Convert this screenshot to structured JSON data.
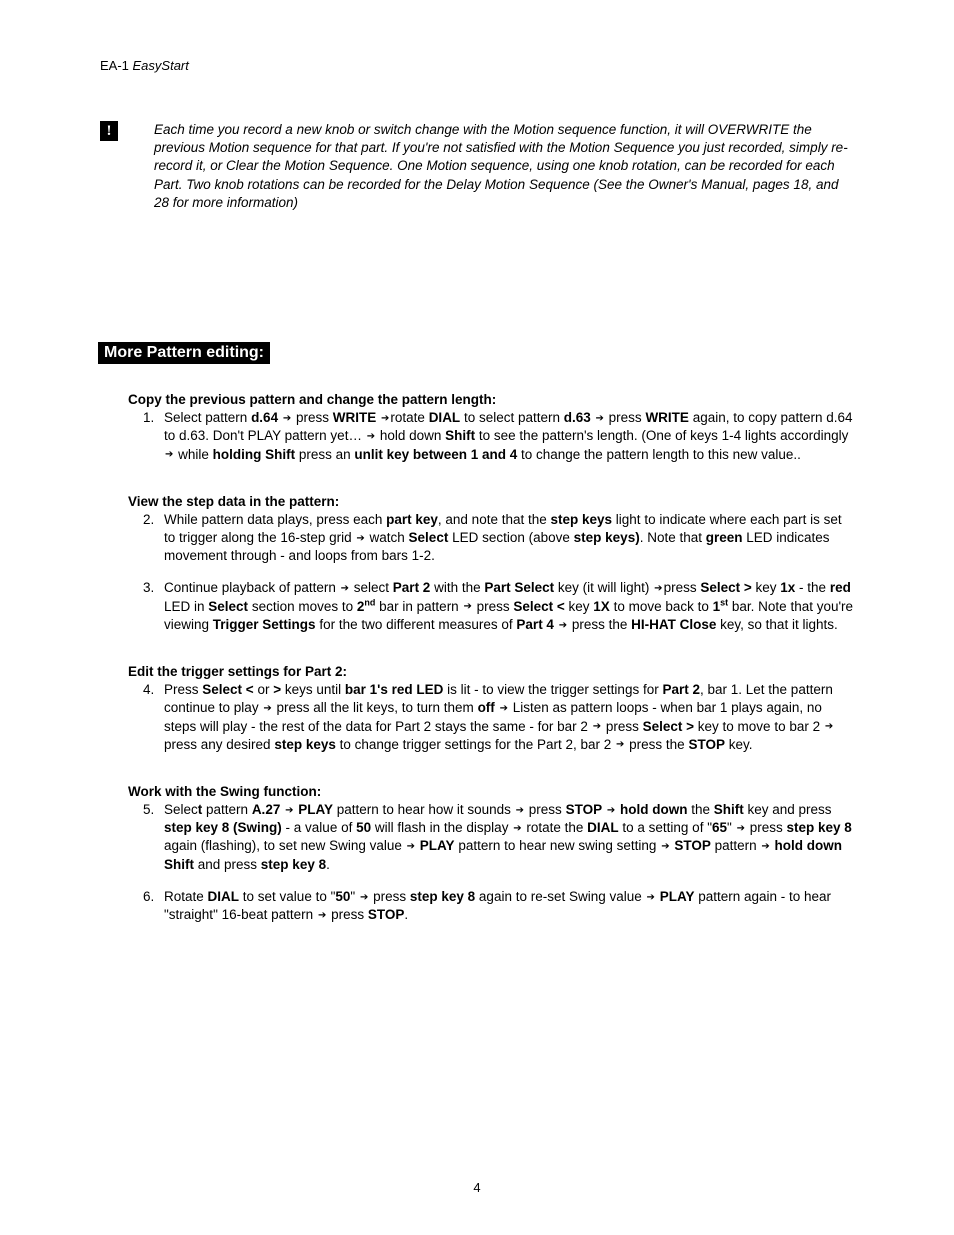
{
  "header_prefix": "EA-1 ",
  "header_italic": "EasyStart",
  "exclaim_char": "!",
  "note_text": "Each time you record a new knob or switch change with the Motion sequence function, it will OVERWRITE the previous Motion sequence for that part. If you're not satisfied with the Motion Sequence you just recorded, simply re-record it, or Clear the Motion Sequence. One Motion sequence, using one knob rotation, can be recorded for each Part. Two knob rotations can be recorded for the Delay Motion Sequence (See the Owner's Manual, pages 18, and 28 for more information)",
  "section_title": " More Pattern editing: ",
  "sub1": "Copy the previous pattern and change the pattern length:",
  "s1": {
    "a1": "Select pattern ",
    "a2": "d.64",
    "a3": " ",
    "a4": " press ",
    "a5": "WRITE",
    "a6": " ",
    "a7": "rotate ",
    "a8": "DIAL",
    "a9": " to select pattern ",
    "a10": "d.63",
    "a11": " ",
    "a12": " press ",
    "a13": "WRITE",
    "a14": " again, to copy pattern d.64 to d.63. Don't PLAY pattern yet… ",
    "a15": " hold down ",
    "a16": "Shift",
    "a17": " to see the pattern's length. (One of keys 1-4 lights accordingly ",
    "a18": " while ",
    "a19": "holding Shift",
    "a20": " press an ",
    "a21": "unlit key between 1 and 4",
    "a22": " to change the pattern length to this new value.."
  },
  "sub2": "View the step data in the pattern:",
  "s2": {
    "a1": "While pattern data plays, press each ",
    "a2": "part key",
    "a3": ", and note that the ",
    "a4": "step keys",
    "a5": " light to indicate where each part is set to trigger along the 16-step grid ",
    "a6": " watch ",
    "a7": "Select",
    "a8": " LED section (above ",
    "a9": "step keys)",
    "a10": ". Note that ",
    "a11": "green",
    "a12": " LED indicates movement through - and loops from bars 1-2."
  },
  "s3": {
    "a1": "Continue playback of pattern ",
    "a2": " select ",
    "a3": "Part 2",
    "a4": " with the ",
    "a5": "Part Select",
    "a6": " key (it will light) ",
    "a7": "press ",
    "a8": "Select >",
    "a9": " key ",
    "a10": "1x",
    "a11": " - the ",
    "a12": "red",
    "a13": " LED in ",
    "a14": "Select",
    "a15": " section moves to ",
    "a16": "2",
    "a17": "nd",
    "a18": " bar in pattern ",
    "a19": " press ",
    "a20": "Select <",
    "a21": " key ",
    "a22": "1X",
    "a23": " to move back to ",
    "a24": "1",
    "a25": "st",
    "a26": " bar. Note that you're viewing ",
    "a27": "Trigger Settings",
    "a28": " for the two different measures of ",
    "a29": "Part 4",
    "a30": " ",
    "a31": " press the ",
    "a32": "HI-HAT Close",
    "a33": " key, so that it lights."
  },
  "sub3": "Edit the trigger settings for Part 2:",
  "s4": {
    "a1": "Press ",
    "a2": "Select <",
    "a3": " or ",
    "a4": ">",
    "a5": " keys until ",
    "a6": "bar 1's red LED",
    "a7": " is lit - to view the trigger settings for ",
    "a8": "Part 2",
    "a9": ", bar 1. Let the pattern continue to play ",
    "a10": " press all the lit keys, to turn them ",
    "a11": "off",
    "a12": " ",
    "a13": " Listen as pattern loops - when bar 1 plays again, no steps will play - the rest of the data for Part 2 stays the same - for bar 2 ",
    "a14": " press ",
    "a15": "Select >",
    "a16": " key to move to bar 2 ",
    "a17": " press any desired ",
    "a18": "step keys",
    "a19": " to change trigger settings for the Part 2, bar 2 ",
    "a20": " press the ",
    "a21": "STOP",
    "a22": " key."
  },
  "sub4": "Work with the Swing function:",
  "s5": {
    "a1": "Selec",
    "a2": "t",
    "a3": " pattern ",
    "a4": "A.27",
    "a5": " ",
    "a6": " ",
    "a7": "PLAY",
    "a8": " pattern to hear how it sounds ",
    "a9": " press ",
    "a10": "STOP",
    "a11": " ",
    "a12": " ",
    "a13": "hold down",
    "a14": " the ",
    "a15": "Shift",
    "a16": " key and press ",
    "a17": "step key 8 (Swing)",
    "a18": " - a value of ",
    "a19": "50",
    "a20": " will flash in the display ",
    "a21": " rotate the ",
    "a22": "DIAL",
    "a23": " to a setting of \"",
    "a24": "65",
    "a25": "\" ",
    "a26": " press ",
    "a27": "step key 8",
    "a28": " again (flashing), to set new Swing value ",
    "a29": " ",
    "a30": "PLAY",
    "a31": " pattern to hear new swing setting ",
    "a32": " ",
    "a33": "STOP",
    "a34": " pattern ",
    "a35": " ",
    "a36": "hold down Shift",
    "a37": " and press ",
    "a38": "step key 8",
    "a39": "."
  },
  "s6": {
    "a1": "Rotate ",
    "a2": "DIAL",
    "a3": " to set value to \"",
    "a4": "50",
    "a5": "\" ",
    "a6": " press ",
    "a7": "step key 8",
    "a8": " again to re-set Swing value ",
    "a9": " ",
    "a10": "PLAY",
    "a11": " pattern again - to hear \"straight\" 16-beat pattern ",
    "a12": " press ",
    "a13": "STOP",
    "a14": "."
  },
  "arrow": "➔",
  "pagenum": "4"
}
